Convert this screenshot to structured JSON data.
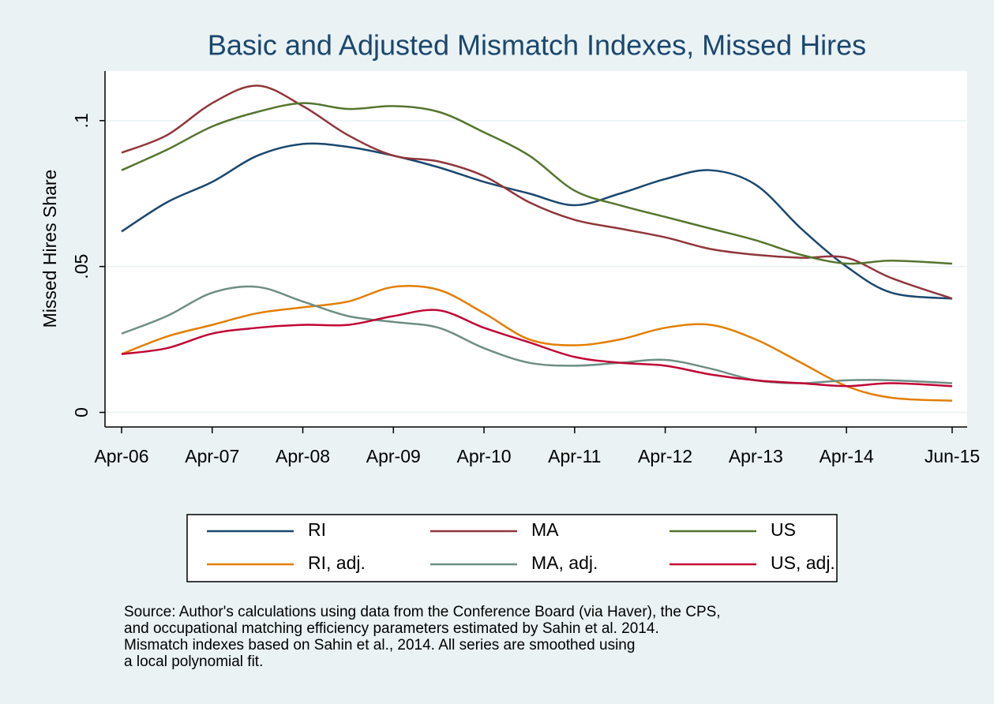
{
  "chart_data": {
    "type": "line",
    "title": "Basic and Adjusted Mismatch Indexes, Missed Hires",
    "y_label": "Missed Hires Share",
    "x": [
      "2006-04",
      "2006-10",
      "2007-04",
      "2007-10",
      "2008-04",
      "2008-10",
      "2009-04",
      "2009-10",
      "2010-04",
      "2010-10",
      "2011-04",
      "2011-10",
      "2012-04",
      "2012-10",
      "2013-04",
      "2013-10",
      "2014-04",
      "2014-10",
      "2015-06"
    ],
    "xlim": [
      "2006-04",
      "2015-06"
    ],
    "xticks": [
      {
        "value": "2006-04",
        "label": "Apr-06"
      },
      {
        "value": "2007-04",
        "label": "Apr-07"
      },
      {
        "value": "2008-04",
        "label": "Apr-08"
      },
      {
        "value": "2009-04",
        "label": "Apr-09"
      },
      {
        "value": "2010-04",
        "label": "Apr-10"
      },
      {
        "value": "2011-04",
        "label": "Apr-11"
      },
      {
        "value": "2012-04",
        "label": "Apr-12"
      },
      {
        "value": "2013-04",
        "label": "Apr-13"
      },
      {
        "value": "2014-04",
        "label": "Apr-14"
      },
      {
        "value": "2015-06",
        "label": "Jun-15"
      }
    ],
    "ylim": [
      -0.005,
      0.117
    ],
    "yticks": [
      0,
      {
        "value": 0.05,
        "label": ".05"
      },
      {
        "value": 0.1,
        "label": ".1"
      }
    ],
    "grid": true,
    "legend_position": "bottom",
    "series": [
      {
        "name": "RI",
        "color": "#1a476f",
        "values": [
          0.062,
          0.072,
          0.079,
          0.088,
          0.092,
          0.091,
          0.088,
          0.084,
          0.079,
          0.075,
          0.071,
          0.075,
          0.08,
          0.083,
          0.078,
          0.063,
          0.05,
          0.041,
          0.039
        ]
      },
      {
        "name": "MA",
        "color": "#90353b",
        "values": [
          0.089,
          0.095,
          0.106,
          0.112,
          0.105,
          0.095,
          0.088,
          0.086,
          0.081,
          0.072,
          0.066,
          0.063,
          0.06,
          0.056,
          0.054,
          0.053,
          0.053,
          0.046,
          0.039
        ]
      },
      {
        "name": "US",
        "color": "#55752f",
        "values": [
          0.083,
          0.09,
          0.098,
          0.103,
          0.106,
          0.104,
          0.105,
          0.103,
          0.096,
          0.088,
          0.076,
          0.071,
          0.067,
          0.063,
          0.059,
          0.054,
          0.051,
          0.052,
          0.051
        ]
      },
      {
        "name": "RI, adj.",
        "color": "#e37e00",
        "values": [
          0.02,
          0.026,
          0.03,
          0.034,
          0.036,
          0.038,
          0.043,
          0.042,
          0.034,
          0.025,
          0.023,
          0.025,
          0.029,
          0.03,
          0.025,
          0.017,
          0.009,
          0.005,
          0.004
        ]
      },
      {
        "name": "MA, adj.",
        "color": "#6e8e84",
        "values": [
          0.027,
          0.033,
          0.041,
          0.043,
          0.038,
          0.033,
          0.031,
          0.029,
          0.022,
          0.017,
          0.016,
          0.017,
          0.018,
          0.015,
          0.011,
          0.01,
          0.011,
          0.011,
          0.01
        ]
      },
      {
        "name": "US, adj.",
        "color": "#c10534",
        "values": [
          0.02,
          0.022,
          0.027,
          0.029,
          0.03,
          0.03,
          0.033,
          0.035,
          0.029,
          0.024,
          0.019,
          0.017,
          0.016,
          0.013,
          0.011,
          0.01,
          0.009,
          0.01,
          0.009
        ]
      }
    ],
    "notes": [
      "Source: Author's calculations using data from the Conference Board (via Haver), the CPS,",
      "and occupational matching efficiency parameters estimated by Sahin et al. 2014.",
      "Mismatch indexes based on Sahin et al., 2014. All series are smoothed using",
      "a local polynomial fit."
    ]
  }
}
